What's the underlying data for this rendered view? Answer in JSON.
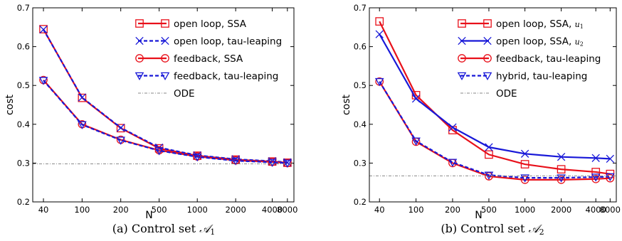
{
  "chart_data": [
    {
      "type": "line",
      "caption_prefix": "(a)  Control set ",
      "caption_symbol": "𝒜",
      "caption_sub": "1",
      "xlabel": "N",
      "ylabel": "cost",
      "x": [
        40,
        100,
        200,
        500,
        1000,
        2000,
        4000,
        8000
      ],
      "xtick_labels": [
        "40",
        "100",
        "200",
        "500",
        "1000",
        "2000",
        "4000",
        "8000"
      ],
      "ylim": [
        0.2,
        0.7
      ],
      "ytick_labels": [
        "0.2",
        "0.3",
        "0.4",
        "0.5",
        "0.6",
        "0.7"
      ],
      "x_scale": "log",
      "legend_position": "top-right",
      "series": [
        {
          "name": "open loop, SSA",
          "color": "#e8101a",
          "marker": "square",
          "dashed": false,
          "values": [
            0.645,
            0.468,
            0.39,
            0.338,
            0.319,
            0.309,
            0.304,
            0.301
          ]
        },
        {
          "name": "open loop, tau-leaping",
          "color": "#1818d8",
          "marker": "x",
          "dashed": true,
          "values": [
            0.644,
            0.469,
            0.391,
            0.34,
            0.32,
            0.31,
            0.305,
            0.302
          ]
        },
        {
          "name": "feedback, SSA",
          "color": "#e8101a",
          "marker": "circle",
          "dashed": false,
          "values": [
            0.514,
            0.4,
            0.36,
            0.333,
            0.317,
            0.307,
            0.303,
            0.3
          ]
        },
        {
          "name": "feedback, tau-leaping",
          "color": "#1818d8",
          "marker": "triangle",
          "dashed": true,
          "values": [
            0.513,
            0.399,
            0.359,
            0.332,
            0.316,
            0.306,
            0.302,
            0.3
          ]
        },
        {
          "name": "ODE",
          "color": "#8a8a8a",
          "marker": "none",
          "dashed": true,
          "dashdot": true,
          "hline": 0.298
        }
      ]
    },
    {
      "type": "line",
      "caption_prefix": "(b)  Control set ",
      "caption_symbol": "𝒜",
      "caption_sub": "2",
      "xlabel": "N",
      "ylabel": "cost",
      "x": [
        40,
        100,
        200,
        500,
        1000,
        2000,
        4000,
        8000
      ],
      "xtick_labels": [
        "40",
        "100",
        "200",
        "500",
        "1000",
        "2000",
        "4000",
        "8000"
      ],
      "ylim": [
        0.2,
        0.7
      ],
      "ytick_labels": [
        "0.2",
        "0.3",
        "0.4",
        "0.5",
        "0.6",
        "0.7"
      ],
      "x_scale": "log",
      "legend_position": "top-right",
      "series": [
        {
          "name": "open loop, SSA, ",
          "name_math": "u",
          "name_sub": "1",
          "color": "#e8101a",
          "marker": "square",
          "dashed": false,
          "values": [
            0.665,
            0.475,
            0.385,
            0.322,
            0.297,
            0.284,
            0.277,
            0.272
          ]
        },
        {
          "name": "open loop, SSA, ",
          "name_math": "u",
          "name_sub": "2",
          "color": "#1818d8",
          "marker": "x",
          "dashed": false,
          "values": [
            0.632,
            0.466,
            0.392,
            0.341,
            0.324,
            0.316,
            0.313,
            0.311
          ]
        },
        {
          "name": "feedback, tau-leaping",
          "color": "#e8101a",
          "marker": "circle",
          "dashed": false,
          "values": [
            0.51,
            0.355,
            0.3,
            0.266,
            0.257,
            0.257,
            0.259,
            0.261
          ]
        },
        {
          "name": "hybrid, tau-leaping",
          "color": "#1818d8",
          "marker": "triangle",
          "dashed": true,
          "values": [
            0.51,
            0.357,
            0.302,
            0.269,
            0.262,
            0.262,
            0.264,
            0.265
          ]
        },
        {
          "name": "ODE",
          "color": "#8a8a8a",
          "marker": "none",
          "dashed": true,
          "dashdot": true,
          "hline": 0.267
        }
      ]
    }
  ]
}
